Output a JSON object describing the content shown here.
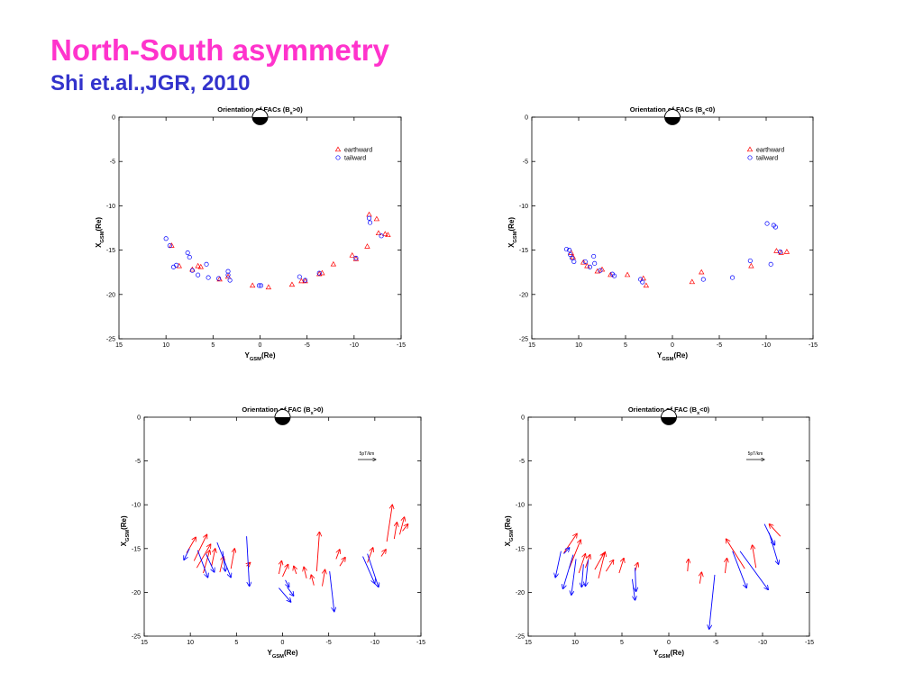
{
  "slide": {
    "title": "North-South asymmetry",
    "subtitle": "Shi et.al.,JGR, 2010"
  },
  "colors": {
    "title": "#ff33cc",
    "subtitle": "#3333cc",
    "earthward": "#ff0000",
    "tailward": "#0000ff"
  },
  "chart_data": [
    {
      "type": "scatter",
      "title": {
        "pre": "Orientation of FACs (B",
        "sub": "x",
        "post": ">0)"
      },
      "xlabel": {
        "main": "Y",
        "sub": "GSM",
        "post": "(Re)"
      },
      "ylabel": {
        "main": "X",
        "sub": "GSM",
        "post": "(Re)"
      },
      "xlim": [
        15,
        -15
      ],
      "ylim": [
        -25,
        0
      ],
      "xticks": [
        "15",
        "10",
        "5",
        "0",
        "-5",
        "-10",
        "-15"
      ],
      "yticks": [
        "0",
        "-5",
        "-10",
        "-15",
        "-20",
        "-25"
      ],
      "legend": {
        "placement": "top-right",
        "entries": [
          "earthward",
          "tailward"
        ]
      },
      "series": [
        {
          "name": "earthward",
          "marker": "triangle",
          "color": "#ff0000",
          "x": [
            9.4,
            8.6,
            7.2,
            6.6,
            6.3,
            4.3,
            3.4,
            0.8,
            -0.9,
            -3.4,
            -4.4,
            -4.8,
            -6.3,
            -6.6,
            -7.8,
            -9.8,
            -10.2,
            -11.4,
            -11.6,
            -12.4,
            -12.6,
            -13.3,
            -13.6
          ],
          "y": [
            -14.5,
            -16.8,
            -17.2,
            -16.8,
            -16.9,
            -18.3,
            -18.0,
            -19.0,
            -19.2,
            -18.9,
            -18.5,
            -18.5,
            -17.7,
            -17.6,
            -16.6,
            -15.6,
            -16.0,
            -14.6,
            -11.0,
            -11.5,
            -13.1,
            -13.2,
            -13.3
          ]
        },
        {
          "name": "tailward",
          "marker": "circle",
          "color": "#0000ff",
          "x": [
            10.0,
            9.6,
            9.2,
            8.9,
            7.7,
            7.5,
            7.2,
            6.6,
            5.7,
            5.5,
            4.4,
            3.4,
            3.4,
            3.2,
            0.1,
            -0.1,
            -4.2,
            -4.8,
            -6.3,
            -10.2,
            -11.6,
            -11.7,
            -12.9
          ],
          "y": [
            -13.7,
            -14.5,
            -16.9,
            -16.7,
            -15.3,
            -15.8,
            -17.3,
            -17.8,
            -16.6,
            -18.1,
            -18.2,
            -17.4,
            -17.8,
            -18.4,
            -19.0,
            -19.0,
            -18.0,
            -18.4,
            -17.6,
            -15.9,
            -11.4,
            -11.9,
            -13.4
          ]
        }
      ]
    },
    {
      "type": "scatter",
      "title": {
        "pre": "Orientation of FACs (B",
        "sub": "x",
        "post": "<0)"
      },
      "xlabel": {
        "main": "Y",
        "sub": "GSM",
        "post": "(Re)"
      },
      "ylabel": {
        "main": "X",
        "sub": "GSM",
        "post": "(Re)"
      },
      "xlim": [
        15,
        -15
      ],
      "ylim": [
        -25,
        0
      ],
      "xticks": [
        "15",
        "10",
        "5",
        "0",
        "-5",
        "-10",
        "-15"
      ],
      "yticks": [
        "0",
        "-5",
        "-10",
        "-15",
        "-20",
        "-25"
      ],
      "legend": {
        "placement": "top-right",
        "entries": [
          "earthward",
          "tailward"
        ]
      },
      "series": [
        {
          "name": "earthward",
          "marker": "triangle",
          "color": "#ff0000",
          "x": [
            10.8,
            10.6,
            9.5,
            9.1,
            8.0,
            7.5,
            6.6,
            4.8,
            3.1,
            2.8,
            -2.1,
            -3.1,
            -8.4,
            -11.1,
            -11.6,
            -12.2
          ],
          "y": [
            -15.3,
            -15.8,
            -16.4,
            -16.8,
            -17.4,
            -17.2,
            -17.8,
            -17.8,
            -18.2,
            -19.0,
            -18.6,
            -17.5,
            -16.8,
            -15.1,
            -15.3,
            -15.2
          ],
          "x_note": ""
        },
        {
          "name": "tailward",
          "marker": "circle",
          "color": "#0000ff",
          "x": [
            11.3,
            11.0,
            10.9,
            10.7,
            10.5,
            9.3,
            8.8,
            8.4,
            8.3,
            7.7,
            6.4,
            6.2,
            3.4,
            3.2,
            -3.3,
            -6.4,
            -8.3,
            -10.1,
            -10.5,
            -10.8,
            -11.0,
            -11.5
          ],
          "y": [
            -14.9,
            -15.0,
            -15.5,
            -15.9,
            -16.3,
            -16.3,
            -16.9,
            -15.7,
            -16.5,
            -17.3,
            -17.7,
            -17.9,
            -18.3,
            -18.6,
            -18.3,
            -18.1,
            -16.2,
            -12.0,
            -16.6,
            -12.2,
            -12.4,
            -15.2
          ]
        }
      ]
    },
    {
      "type": "scatter",
      "title": {
        "pre": "Orientation of FAC (B",
        "sub": "x",
        "post": ">0)"
      },
      "xlabel": {
        "main": "Y",
        "sub": "GSM",
        "post": "(Re)"
      },
      "ylabel": {
        "main": "X",
        "sub": "GSM",
        "post": "(Re)"
      },
      "xlim": [
        15,
        -15
      ],
      "ylim": [
        -25,
        0
      ],
      "xticks": [
        "15",
        "10",
        "5",
        "0",
        "-5",
        "-10",
        "-15"
      ],
      "yticks": [
        "0",
        "-5",
        "-10",
        "-15",
        "-20",
        "-25"
      ],
      "scale_label": "5pT/km",
      "series": [
        {
          "name": "earthward",
          "marker": "arrow",
          "color": "#ff0000",
          "segments": [
            [
              10.4,
              -15.5,
              9.4,
              -13.7
            ],
            [
              9.6,
              -16.4,
              8.2,
              -13.4
            ],
            [
              9.3,
              -17.2,
              7.8,
              -14.5
            ],
            [
              8.6,
              -17.8,
              7.9,
              -15.2
            ],
            [
              7.7,
              -17.0,
              7.3,
              -15.0
            ],
            [
              6.8,
              -17.7,
              6.4,
              -15.9
            ],
            [
              5.6,
              -17.3,
              5.2,
              -15.0
            ],
            [
              3.9,
              -17.0,
              3.5,
              -16.6
            ],
            [
              0.4,
              -17.9,
              0.1,
              -16.4
            ],
            [
              0.0,
              -18.2,
              -0.6,
              -16.8
            ],
            [
              -1.5,
              -17.9,
              -1.2,
              -17.0
            ],
            [
              -2.6,
              -18.4,
              -2.3,
              -17.1
            ],
            [
              -3.4,
              -19.2,
              -3.1,
              -18.0
            ],
            [
              -3.7,
              -17.6,
              -4.0,
              -13.1
            ],
            [
              -4.3,
              -19.3,
              -4.6,
              -17.4
            ],
            [
              -5.8,
              -16.2,
              -6.2,
              -15.1
            ],
            [
              -6.2,
              -17.0,
              -6.8,
              -16.0
            ],
            [
              -9.2,
              -16.6,
              -9.8,
              -14.9
            ],
            [
              -10.7,
              -15.9,
              -11.2,
              -15.1
            ],
            [
              -11.3,
              -14.2,
              -11.9,
              -10.0
            ],
            [
              -12.1,
              -13.9,
              -12.4,
              -12.0
            ],
            [
              -12.7,
              -13.4,
              -13.2,
              -11.4
            ],
            [
              -13.0,
              -13.0,
              -13.6,
              -12.2
            ]
          ]
        },
        {
          "name": "tailward",
          "marker": "arrow",
          "color": "#0000ff",
          "segments": [
            [
              10.1,
              -15.0,
              10.7,
              -16.3
            ],
            [
              9.2,
              -15.2,
              8.1,
              -18.3
            ],
            [
              8.3,
              -15.6,
              7.4,
              -17.7
            ],
            [
              7.1,
              -14.3,
              5.6,
              -18.3
            ],
            [
              6.5,
              -15.3,
              6.2,
              -17.6
            ],
            [
              3.9,
              -13.6,
              3.6,
              -19.3
            ],
            [
              0.4,
              -19.5,
              -0.9,
              -21.1
            ],
            [
              -0.5,
              -19.4,
              -1.2,
              -20.4
            ],
            [
              -0.3,
              -18.6,
              -0.7,
              -19.4
            ],
            [
              -5.1,
              -17.6,
              -5.6,
              -22.2
            ],
            [
              -9.2,
              -15.6,
              -10.4,
              -19.4
            ],
            [
              -8.7,
              -15.9,
              -10.0,
              -19.0
            ]
          ]
        }
      ]
    },
    {
      "type": "scatter",
      "title": {
        "pre": "Orientation of FAC (B",
        "sub": "x",
        "post": "<0)"
      },
      "xlabel": {
        "main": "Y",
        "sub": "GSM",
        "post": "(Re)"
      },
      "ylabel": {
        "main": "X",
        "sub": "GSM",
        "post": "(Re)"
      },
      "xlim": [
        15,
        -15
      ],
      "ylim": [
        -25,
        0
      ],
      "xticks": [
        "15",
        "10",
        "5",
        "0",
        "-5",
        "-10",
        "-15"
      ],
      "yticks": [
        "0",
        "-5",
        "-10",
        "-15",
        "-20",
        "-25"
      ],
      "scale_label": "5pT/km",
      "series": [
        {
          "name": "earthward",
          "marker": "arrow",
          "color": "#ff0000",
          "segments": [
            [
              11.2,
              -15.5,
              9.8,
              -13.3
            ],
            [
              10.6,
              -17.2,
              9.4,
              -14.0
            ],
            [
              9.6,
              -17.8,
              8.9,
              -15.6
            ],
            [
              8.9,
              -17.2,
              8.4,
              -15.7
            ],
            [
              7.9,
              -17.4,
              6.9,
              -15.5
            ],
            [
              7.5,
              -18.4,
              6.8,
              -15.4
            ],
            [
              6.7,
              -17.6,
              5.9,
              -16.3
            ],
            [
              5.3,
              -17.8,
              4.8,
              -16.1
            ],
            [
              3.6,
              -17.6,
              3.3,
              -16.6
            ],
            [
              -2.0,
              -17.6,
              -2.1,
              -16.2
            ],
            [
              -3.3,
              -19.0,
              -3.5,
              -17.7
            ],
            [
              -6.0,
              -17.8,
              -6.2,
              -16.1
            ],
            [
              -8.1,
              -17.3,
              -6.1,
              -13.9
            ],
            [
              -9.3,
              -17.2,
              -8.9,
              -14.6
            ],
            [
              -11.9,
              -13.6,
              -10.7,
              -12.2
            ]
          ]
        },
        {
          "name": "tailward",
          "marker": "arrow",
          "color": "#0000ff",
          "segments": [
            [
              11.2,
              -15.6,
              10.6,
              -14.9
            ],
            [
              11.5,
              -15.3,
              12.1,
              -18.3
            ],
            [
              10.2,
              -15.7,
              11.3,
              -19.6
            ],
            [
              9.9,
              -16.2,
              10.4,
              -20.3
            ],
            [
              9.1,
              -16.8,
              9.3,
              -19.4
            ],
            [
              8.6,
              -16.3,
              8.9,
              -19.3
            ],
            [
              3.9,
              -18.5,
              3.6,
              -20.9
            ],
            [
              3.6,
              -17.2,
              3.5,
              -19.9
            ],
            [
              -4.9,
              -18.0,
              -4.3,
              -24.2
            ],
            [
              -6.8,
              -15.3,
              -8.3,
              -19.5
            ],
            [
              -7.6,
              -15.3,
              -10.6,
              -19.7
            ],
            [
              -10.2,
              -12.2,
              -11.3,
              -14.6
            ],
            [
              -10.7,
              -13.2,
              -11.7,
              -16.8
            ]
          ]
        }
      ]
    }
  ]
}
